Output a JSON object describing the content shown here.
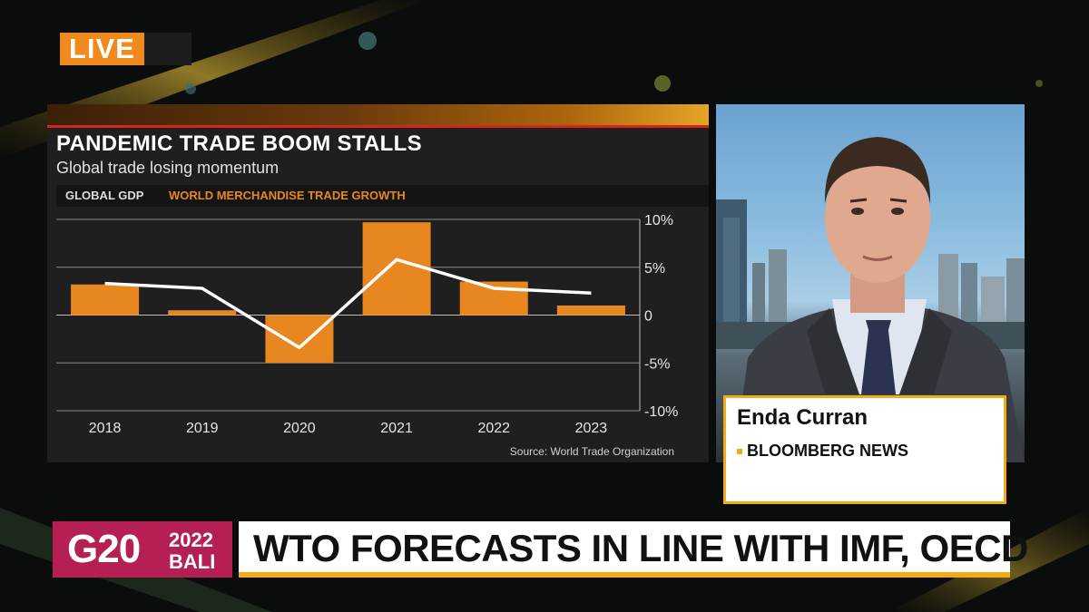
{
  "live_label": "LIVE",
  "chart_data": {
    "type": "bar",
    "title": "PANDEMIC TRADE BOOM STALLS",
    "subtitle": "Global trade losing momentum",
    "categories": [
      "2018",
      "2019",
      "2020",
      "2021",
      "2022",
      "2023"
    ],
    "series": [
      {
        "name": "WORLD MERCHANDISE TRADE GROWTH",
        "type": "bar",
        "color": "#e8871f",
        "values": [
          3.2,
          0.5,
          -5.0,
          9.7,
          3.5,
          1.0
        ]
      },
      {
        "name": "GLOBAL GDP",
        "type": "line",
        "color": "#ffffff",
        "values": [
          3.3,
          2.8,
          -3.4,
          5.8,
          2.8,
          2.3
        ]
      }
    ],
    "ylim": [
      -10,
      10
    ],
    "y_ticks": [
      10,
      5,
      0,
      -5,
      -10
    ],
    "y_tick_labels": [
      "10%",
      "5%",
      "0",
      "-5%",
      "-10%"
    ],
    "y_axis_position": "right",
    "grid": true,
    "source": "Source: World Trade Organization"
  },
  "person": {
    "name": "Enda Curran",
    "org": "BLOOMBERG NEWS"
  },
  "lower_third": {
    "badge_main": "G20",
    "badge_year": "2022",
    "badge_city": "BALI",
    "headline": "WTO FORECASTS IN LINE WITH IMF, OECD"
  },
  "colors": {
    "accent_orange": "#e8871f",
    "accent_yellow": "#f0ac12",
    "g20_magenta": "#b51f54",
    "live_orange": "#f08a1c"
  }
}
